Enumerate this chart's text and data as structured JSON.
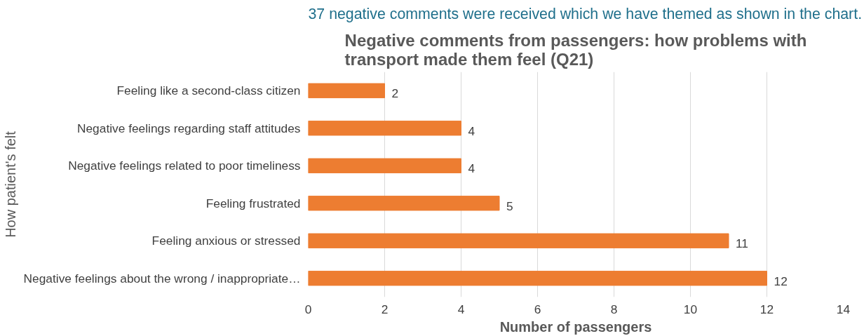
{
  "chart_data": {
    "type": "bar",
    "orientation": "horizontal",
    "title": "Negative comments from passengers: how problems with\ntransport made them feel (Q21)",
    "xlabel": "Number of passengers",
    "ylabel": "How patient's felt",
    "annotations": [
      "37 negative comments were received which we have themed as shown in the chart."
    ],
    "categories": [
      "Feeling like a second-class citizen",
      "Negative feelings regarding staff attitudes",
      "Negative feelings related to poor timeliness",
      "Feeling frustrated",
      "Feeling anxious or stressed",
      "Negative feelings about the wrong / inappropriate…"
    ],
    "values": [
      2,
      4,
      4,
      5,
      11,
      12
    ],
    "color": "#ed7d31",
    "xlim": [
      0,
      14
    ],
    "xticks": [
      0,
      2,
      4,
      6,
      8,
      10,
      12,
      14
    ],
    "grid": "x",
    "data_labels": true
  }
}
